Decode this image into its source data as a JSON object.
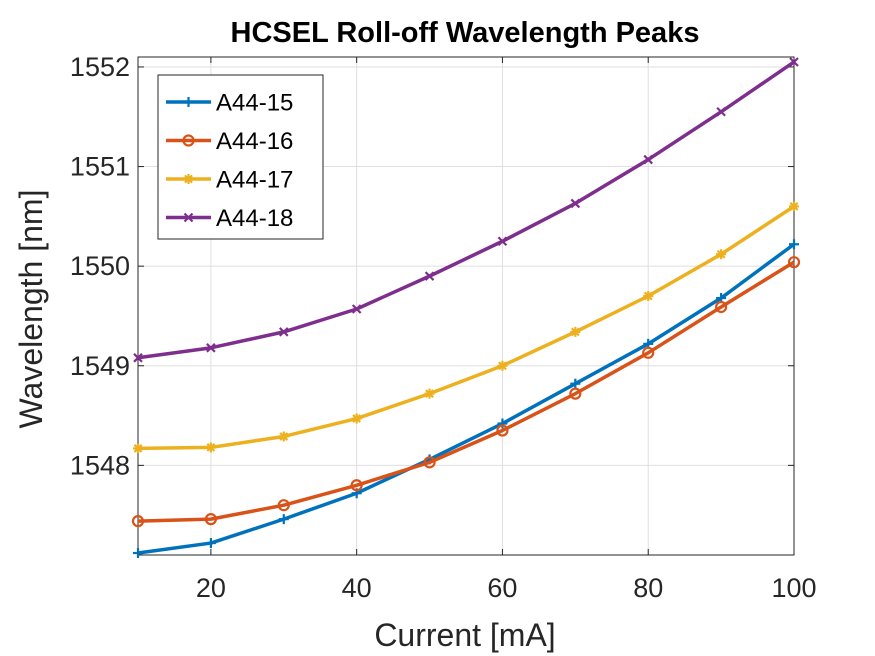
{
  "chart_data": {
    "type": "line",
    "title": "HCSEL Roll-off Wavelength Peaks",
    "xlabel": "Current [mA]",
    "ylabel": "Wavelength [nm]",
    "xlim": [
      10,
      100
    ],
    "ylim": [
      1547.1,
      1552.1
    ],
    "xticks": [
      20,
      40,
      60,
      80,
      100
    ],
    "yticks": [
      1548,
      1549,
      1550,
      1551,
      1552
    ],
    "grid": true,
    "legend_position": "top-left",
    "x": [
      10,
      20,
      30,
      40,
      50,
      60,
      70,
      80,
      90,
      100
    ],
    "series": [
      {
        "name": "A44-15",
        "color": "#0072BD",
        "marker": "plus",
        "values": [
          1547.12,
          1547.22,
          1547.46,
          1547.72,
          1548.06,
          1548.42,
          1548.82,
          1549.22,
          1549.68,
          1550.22
        ]
      },
      {
        "name": "A44-16",
        "color": "#D95319",
        "marker": "circle",
        "values": [
          1547.44,
          1547.46,
          1547.6,
          1547.8,
          1548.03,
          1548.35,
          1548.72,
          1549.13,
          1549.59,
          1550.04
        ]
      },
      {
        "name": "A44-17",
        "color": "#EDB120",
        "marker": "asterisk",
        "values": [
          1548.17,
          1548.18,
          1548.29,
          1548.47,
          1548.72,
          1549.0,
          1549.34,
          1549.7,
          1550.12,
          1550.6
        ]
      },
      {
        "name": "A44-18",
        "color": "#7E2F8E",
        "marker": "cross",
        "values": [
          1549.08,
          1549.18,
          1549.34,
          1549.57,
          1549.9,
          1550.25,
          1550.63,
          1551.07,
          1551.55,
          1552.05
        ]
      }
    ]
  }
}
